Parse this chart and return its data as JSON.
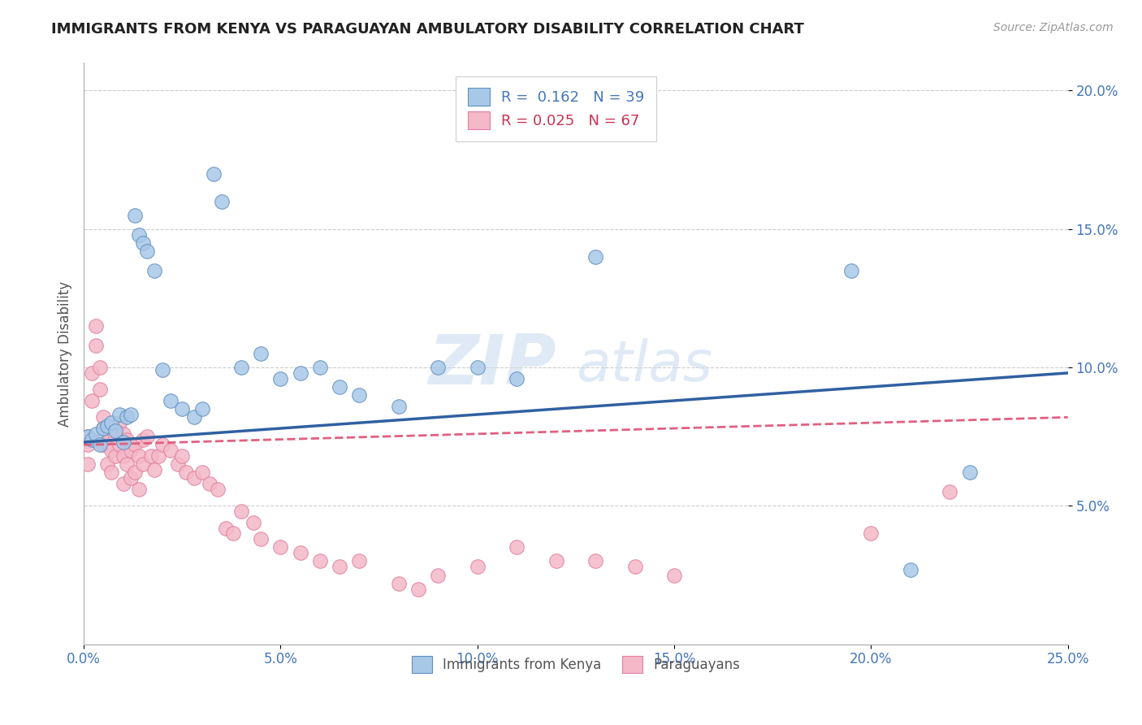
{
  "title": "IMMIGRANTS FROM KENYA VS PARAGUAYAN AMBULATORY DISABILITY CORRELATION CHART",
  "source": "Source: ZipAtlas.com",
  "ylabel": "Ambulatory Disability",
  "xlim": [
    0.0,
    0.25
  ],
  "ylim": [
    0.0,
    0.21
  ],
  "xticks": [
    0.0,
    0.05,
    0.1,
    0.15,
    0.2,
    0.25
  ],
  "xtick_labels": [
    "0.0%",
    "5.0%",
    "10.0%",
    "15.0%",
    "20.0%",
    "25.0%"
  ],
  "yticks": [
    0.05,
    0.1,
    0.15,
    0.2
  ],
  "ytick_labels": [
    "5.0%",
    "10.0%",
    "15.0%",
    "20.0%"
  ],
  "blue_R": 0.162,
  "blue_N": 39,
  "pink_R": 0.025,
  "pink_N": 67,
  "blue_color": "#a8c8e8",
  "pink_color": "#f4b8c8",
  "blue_edge_color": "#6090c0",
  "pink_edge_color": "#e080a0",
  "blue_line_color": "#3060a0",
  "pink_line_color": "#e06080",
  "watermark_zip": "ZIP",
  "watermark_atlas": "atlas",
  "legend_label_blue": "Immigrants from Kenya",
  "legend_label_pink": "Paraguayans",
  "blue_scatter_x": [
    0.001,
    0.002,
    0.003,
    0.004,
    0.005,
    0.006,
    0.007,
    0.008,
    0.009,
    0.01,
    0.011,
    0.012,
    0.013,
    0.014,
    0.015,
    0.016,
    0.018,
    0.02,
    0.022,
    0.025,
    0.028,
    0.03,
    0.033,
    0.035,
    0.04,
    0.045,
    0.05,
    0.055,
    0.06,
    0.065,
    0.07,
    0.08,
    0.09,
    0.1,
    0.11,
    0.13,
    0.195,
    0.21,
    0.225
  ],
  "blue_scatter_y": [
    0.075,
    0.074,
    0.076,
    0.072,
    0.078,
    0.079,
    0.08,
    0.077,
    0.083,
    0.073,
    0.082,
    0.083,
    0.155,
    0.148,
    0.145,
    0.142,
    0.135,
    0.099,
    0.088,
    0.085,
    0.082,
    0.085,
    0.17,
    0.16,
    0.1,
    0.105,
    0.096,
    0.098,
    0.1,
    0.093,
    0.09,
    0.086,
    0.1,
    0.1,
    0.096,
    0.14,
    0.135,
    0.027,
    0.062
  ],
  "pink_scatter_x": [
    0.001,
    0.001,
    0.001,
    0.002,
    0.002,
    0.003,
    0.003,
    0.004,
    0.004,
    0.005,
    0.005,
    0.005,
    0.006,
    0.006,
    0.007,
    0.007,
    0.008,
    0.008,
    0.009,
    0.009,
    0.01,
    0.01,
    0.01,
    0.011,
    0.011,
    0.012,
    0.012,
    0.013,
    0.013,
    0.014,
    0.014,
    0.015,
    0.015,
    0.016,
    0.017,
    0.018,
    0.019,
    0.02,
    0.022,
    0.024,
    0.025,
    0.026,
    0.028,
    0.03,
    0.032,
    0.034,
    0.036,
    0.038,
    0.04,
    0.043,
    0.045,
    0.05,
    0.055,
    0.06,
    0.065,
    0.07,
    0.08,
    0.085,
    0.09,
    0.1,
    0.11,
    0.12,
    0.13,
    0.14,
    0.15,
    0.2,
    0.22
  ],
  "pink_scatter_y": [
    0.075,
    0.072,
    0.065,
    0.098,
    0.088,
    0.115,
    0.108,
    0.1,
    0.092,
    0.082,
    0.078,
    0.072,
    0.073,
    0.065,
    0.07,
    0.062,
    0.075,
    0.068,
    0.08,
    0.072,
    0.076,
    0.068,
    0.058,
    0.074,
    0.065,
    0.07,
    0.06,
    0.062,
    0.072,
    0.068,
    0.056,
    0.074,
    0.065,
    0.075,
    0.068,
    0.063,
    0.068,
    0.072,
    0.07,
    0.065,
    0.068,
    0.062,
    0.06,
    0.062,
    0.058,
    0.056,
    0.042,
    0.04,
    0.048,
    0.044,
    0.038,
    0.035,
    0.033,
    0.03,
    0.028,
    0.03,
    0.022,
    0.02,
    0.025,
    0.028,
    0.035,
    0.03,
    0.03,
    0.028,
    0.025,
    0.04,
    0.055
  ],
  "blue_trendline_x": [
    0.0,
    0.25
  ],
  "blue_trendline_y": [
    0.073,
    0.098
  ],
  "pink_trendline_x": [
    0.0,
    0.25
  ],
  "pink_trendline_y": [
    0.072,
    0.082
  ]
}
